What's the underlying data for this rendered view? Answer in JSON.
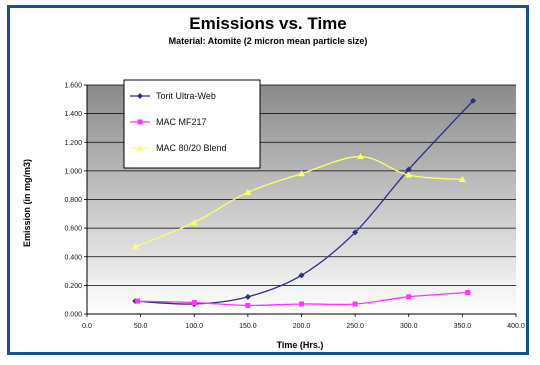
{
  "chart_data": {
    "type": "line",
    "title": "Emissions vs. Time",
    "subtitle": "Material: Atomite (2 micron mean particle size)",
    "xlabel": "Time (Hrs.)",
    "ylabel": "Emission (in mg/m3)",
    "xlim": [
      0,
      400
    ],
    "ylim": [
      0,
      1.6
    ],
    "x_ticks": [
      0,
      50,
      100,
      150,
      200,
      250,
      300,
      350,
      400
    ],
    "x_tick_labels": [
      "0.0",
      "50.0",
      "100.0",
      "150.0",
      "200.0",
      "250.0",
      "300.0",
      "350.0",
      "400.0"
    ],
    "y_ticks": [
      0,
      0.2,
      0.4,
      0.6,
      0.8,
      1.0,
      1.2,
      1.4,
      1.6
    ],
    "y_tick_labels": [
      "0.000",
      "0.200",
      "0.400",
      "0.600",
      "0.800",
      "1.000",
      "1.200",
      "1.400",
      "1.600"
    ],
    "grid": true,
    "legend_position": "top-left",
    "series": [
      {
        "name": "Torit Ultra-Web",
        "color": "#2b2f8c",
        "marker": "diamond",
        "x": [
          45,
          100,
          150,
          200,
          250,
          300,
          360
        ],
        "y": [
          0.09,
          0.07,
          0.12,
          0.27,
          0.57,
          1.01,
          1.49
        ]
      },
      {
        "name": "MAC MF217",
        "color": "#ff33ff",
        "marker": "square",
        "x": [
          47,
          100,
          150,
          200,
          250,
          300,
          355
        ],
        "y": [
          0.09,
          0.08,
          0.06,
          0.07,
          0.07,
          0.12,
          0.15
        ]
      },
      {
        "name": "MAC 80/20 Blend",
        "color": "#ffff66",
        "marker": "triangle",
        "x": [
          45,
          100,
          150,
          200,
          255,
          300,
          350
        ],
        "y": [
          0.47,
          0.64,
          0.85,
          0.98,
          1.1,
          0.97,
          0.94
        ]
      }
    ]
  }
}
